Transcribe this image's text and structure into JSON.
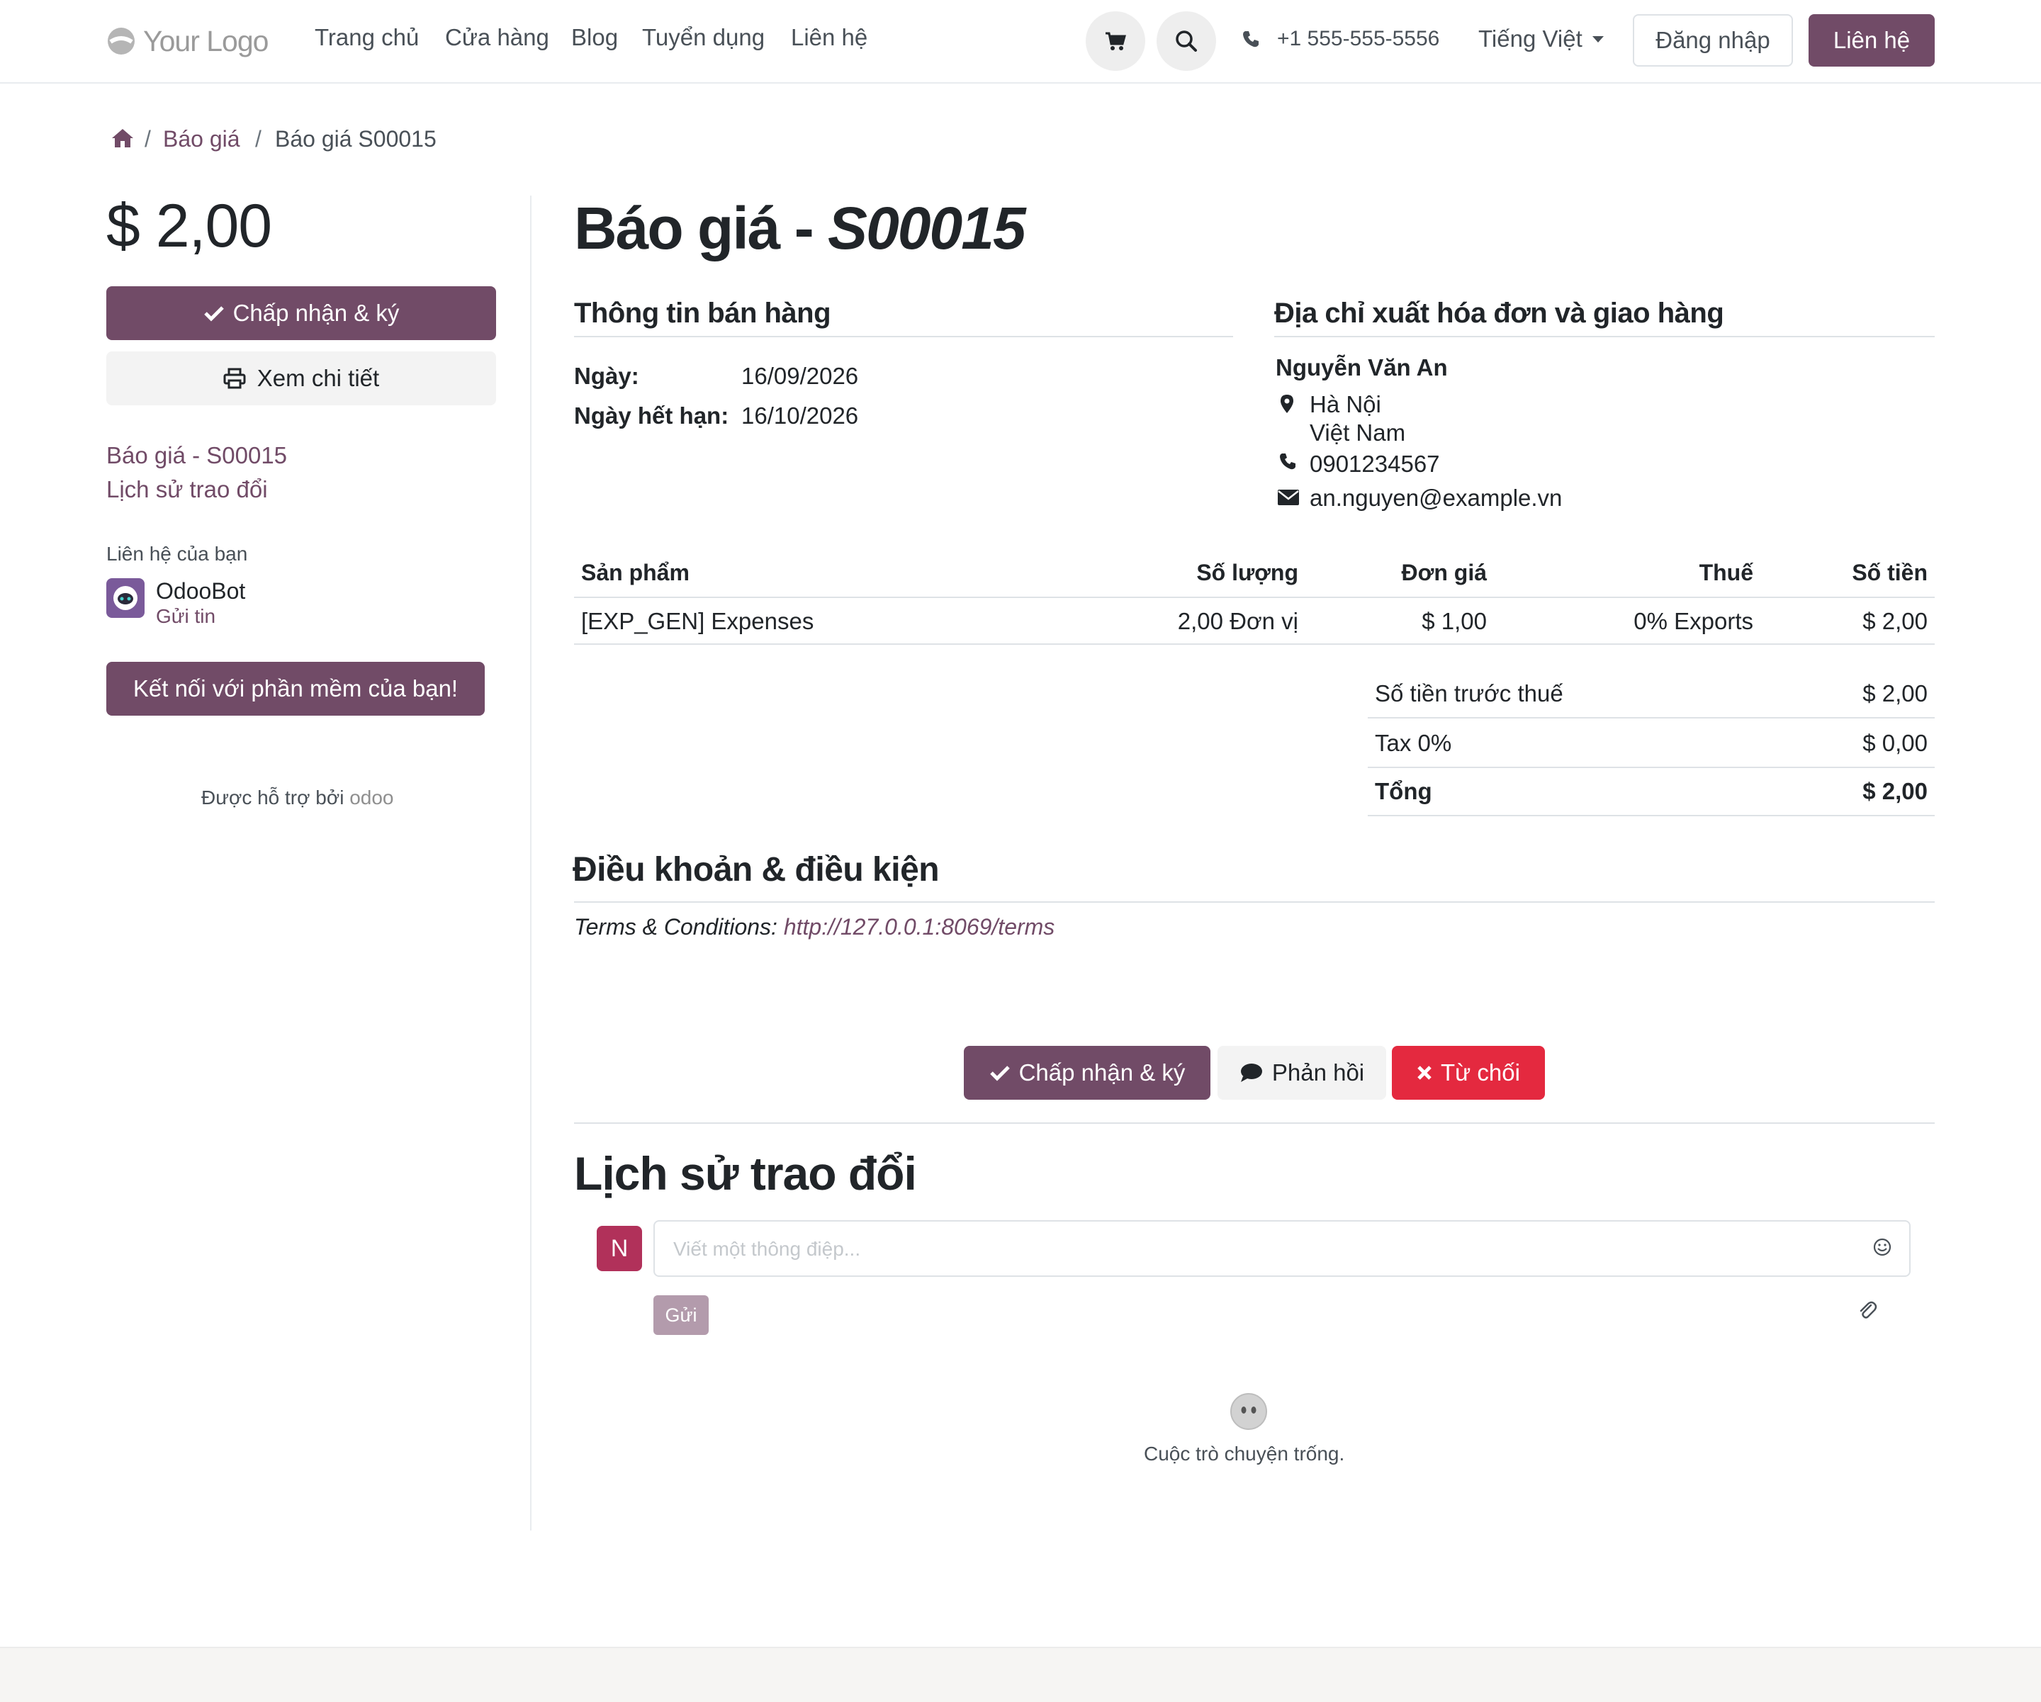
{
  "header": {
    "logo_text": "Your Logo",
    "nav": [
      "Trang chủ",
      "Cửa hàng",
      "Blog",
      "Tuyển dụng",
      "Liên hệ"
    ],
    "phone": "+1 555-555-5556",
    "language": "Tiếng Việt",
    "login_label": "Đăng nhập",
    "contact_label": "Liên hệ"
  },
  "breadcrumb": {
    "parent": "Báo giá",
    "current": "Báo giá S00015"
  },
  "sidebar": {
    "amount": "$ 2,00",
    "accept_label": "Chấp nhận & ký",
    "view_label": "Xem chi tiết",
    "links": [
      "Báo giá - S00015",
      "Lịch sử trao đổi"
    ],
    "contact_title": "Liên hệ của bạn",
    "contact_name": "OdooBot",
    "contact_action": "Gửi tin",
    "connect_label": "Kết nối với phần mềm của bạn!",
    "powered_by": "Được hỗ trợ bởi",
    "powered_brand": "odoo"
  },
  "document": {
    "title_prefix": "Báo giá - ",
    "title_ref": "S00015",
    "sales_info_heading": "Thông tin bán hàng",
    "date_label": "Ngày:",
    "date_value": "16/09/2026",
    "expiry_label": "Ngày hết hạn:",
    "expiry_value": "16/10/2026",
    "address_heading": "Địa chỉ xuất hóa đơn và giao hàng",
    "customer": {
      "name": "Nguyễn Văn An",
      "city": "Hà Nội",
      "country": "Việt Nam",
      "phone": "0901234567",
      "email": "an.nguyen@example.vn"
    }
  },
  "table": {
    "headers": [
      "Sản phẩm",
      "Số lượng",
      "Đơn giá",
      "Thuế",
      "Số tiền"
    ],
    "rows": [
      {
        "product": "[EXP_GEN] Expenses",
        "quantity": "2,00 Đơn vị",
        "unit_price": "$ 1,00",
        "tax": "0% Exports",
        "amount": "$ 2,00"
      }
    ]
  },
  "totals": [
    {
      "label": "Số tiền trước thuế",
      "value": "$ 2,00"
    },
    {
      "label": "Tax 0%",
      "value": "$ 0,00"
    },
    {
      "label": "Tổng",
      "value": "$ 2,00"
    }
  ],
  "terms": {
    "heading": "Điều khoản & điều kiện",
    "prefix": "Terms & Conditions: ",
    "url": "http://127.0.0.1:8069/terms"
  },
  "actions": {
    "accept_label": "Chấp nhận & ký",
    "feedback_label": "Phản hồi",
    "reject_label": "Từ chối"
  },
  "chatter": {
    "title": "Lịch sử trao đổi",
    "avatar_letter": "N",
    "input_placeholder": "Viết một thông điệp...",
    "send_label": "Gửi",
    "empty_text": "Cuộc trò chuyện trống."
  },
  "colors": {
    "primary": "#714b67",
    "danger": "#e4293f",
    "avatar": "#b1315a"
  }
}
